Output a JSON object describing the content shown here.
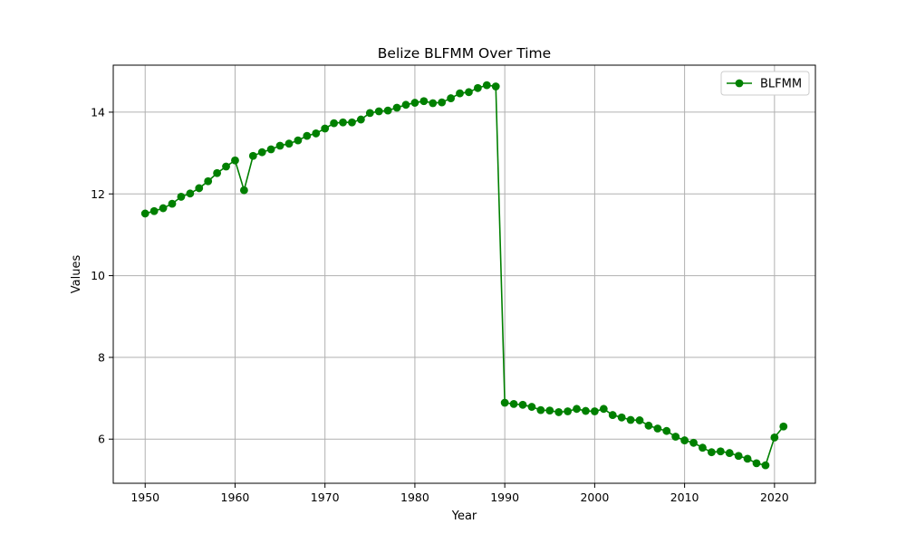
{
  "chart_data": {
    "type": "line",
    "title": "Belize BLFMM Over Time",
    "xlabel": "Year",
    "ylabel": "Values",
    "xlim": [
      1946.45,
      2024.55
    ],
    "ylim": [
      4.92,
      15.15
    ],
    "xticks": [
      1950,
      1960,
      1970,
      1980,
      1990,
      2000,
      2010,
      2020
    ],
    "yticks": [
      6,
      8,
      10,
      12,
      14
    ],
    "grid": true,
    "legend_position": "top-right",
    "series": [
      {
        "name": "BLFMM",
        "color": "#008000",
        "marker": "circle",
        "x": [
          1950,
          1951,
          1952,
          1953,
          1954,
          1955,
          1956,
          1957,
          1958,
          1959,
          1960,
          1961,
          1962,
          1963,
          1964,
          1965,
          1966,
          1967,
          1968,
          1969,
          1970,
          1971,
          1972,
          1973,
          1974,
          1975,
          1976,
          1977,
          1978,
          1979,
          1980,
          1981,
          1982,
          1983,
          1984,
          1985,
          1986,
          1987,
          1988,
          1989,
          1990,
          1991,
          1992,
          1993,
          1994,
          1995,
          1996,
          1997,
          1998,
          1999,
          2000,
          2001,
          2002,
          2003,
          2004,
          2005,
          2006,
          2007,
          2008,
          2009,
          2010,
          2011,
          2012,
          2013,
          2014,
          2015,
          2016,
          2017,
          2018,
          2019,
          2020,
          2021
        ],
        "y": [
          11.52,
          11.58,
          11.65,
          11.76,
          11.93,
          12.01,
          12.14,
          12.31,
          12.51,
          12.67,
          12.82,
          12.09,
          12.93,
          13.02,
          13.09,
          13.18,
          13.23,
          13.31,
          13.42,
          13.48,
          13.6,
          13.73,
          13.75,
          13.75,
          13.82,
          13.98,
          14.02,
          14.04,
          14.11,
          14.18,
          14.23,
          14.27,
          14.22,
          14.24,
          14.34,
          14.46,
          14.49,
          14.59,
          14.66,
          14.63,
          6.89,
          6.86,
          6.84,
          6.79,
          6.71,
          6.7,
          6.66,
          6.68,
          6.74,
          6.69,
          6.68,
          6.74,
          6.59,
          6.53,
          6.47,
          6.46,
          6.33,
          6.26,
          6.2,
          6.06,
          5.97,
          5.91,
          5.79,
          5.68,
          5.7,
          5.66,
          5.59,
          5.52,
          5.41,
          5.36,
          6.04,
          6.31
        ]
      }
    ]
  }
}
